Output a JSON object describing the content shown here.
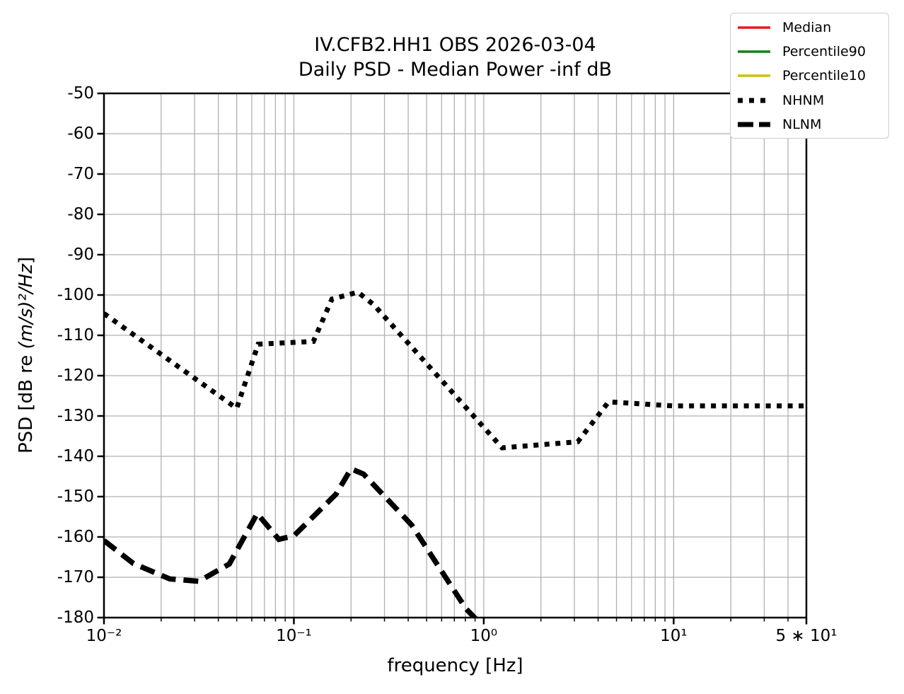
{
  "chart_data": {
    "type": "line",
    "title_line1": "IV.CFB2.HH1 OBS 2026-03-04",
    "title_line2": "Daily PSD - Median Power -inf dB",
    "x_axis": {
      "label": "frequency [Hz]",
      "scale": "log",
      "range": [
        0.01,
        50
      ],
      "major_ticks": [
        {
          "value": 0.01,
          "label": "10⁻²"
        },
        {
          "value": 0.1,
          "label": "10⁻¹"
        },
        {
          "value": 1,
          "label": "10⁰"
        },
        {
          "value": 10,
          "label": "10¹"
        },
        {
          "value": 50,
          "label": "5 ∗ 10¹"
        }
      ],
      "minor_ticks": [
        0.02,
        0.03,
        0.04,
        0.05,
        0.06,
        0.07,
        0.08,
        0.09,
        0.2,
        0.3,
        0.4,
        0.5,
        0.6,
        0.7,
        0.8,
        0.9,
        2,
        3,
        4,
        5,
        6,
        7,
        8,
        9,
        20,
        30,
        40
      ]
    },
    "y_axis": {
      "label_text": "PSD [dB re ",
      "label_units_math": "(m/s)²/Hz",
      "label_close": "]",
      "scale": "linear",
      "range": [
        -180,
        -50
      ],
      "ticks": [
        {
          "value": -50,
          "label": "-50"
        },
        {
          "value": -60,
          "label": "-60"
        },
        {
          "value": -70,
          "label": "-70"
        },
        {
          "value": -80,
          "label": "-80"
        },
        {
          "value": -90,
          "label": "-90"
        },
        {
          "value": -100,
          "label": "-100"
        },
        {
          "value": -110,
          "label": "-110"
        },
        {
          "value": -120,
          "label": "-120"
        },
        {
          "value": -130,
          "label": "-130"
        },
        {
          "value": -140,
          "label": "-140"
        },
        {
          "value": -150,
          "label": "-150"
        },
        {
          "value": -160,
          "label": "-160"
        },
        {
          "value": -170,
          "label": "-170"
        },
        {
          "value": -180,
          "label": "-180"
        }
      ]
    },
    "grid": {
      "which": "both",
      "color": "#b0b0b0"
    },
    "legend": {
      "position": "upper right"
    },
    "series": [
      {
        "name": "Median",
        "color": "#e8191c",
        "line_style": "solid",
        "points": []
      },
      {
        "name": "Percentile90",
        "color": "#15801a",
        "line_style": "solid",
        "points": []
      },
      {
        "name": "Percentile10",
        "color": "#c9c016",
        "line_style": "solid",
        "points": []
      },
      {
        "name": "NHNM",
        "color": "#000000",
        "line_style": "dotted",
        "points": [
          [
            0.01,
            -104.6
          ],
          [
            0.05,
            -128.1
          ],
          [
            0.0649,
            -112.2
          ],
          [
            0.1266,
            -111.5
          ],
          [
            0.1587,
            -101.0
          ],
          [
            0.2174,
            -99.3
          ],
          [
            0.2632,
            -102.4
          ],
          [
            1.25,
            -137.9
          ],
          [
            3.125,
            -136.4
          ],
          [
            4.545,
            -126.5
          ],
          [
            10,
            -127.5
          ],
          [
            50,
            -127.5
          ]
        ]
      },
      {
        "name": "NLNM",
        "color": "#000000",
        "line_style": "dashed",
        "points": [
          [
            0.01,
            -160.9
          ],
          [
            0.0143,
            -166.6
          ],
          [
            0.0222,
            -170.4
          ],
          [
            0.0316,
            -171.0
          ],
          [
            0.0457,
            -166.7
          ],
          [
            0.0641,
            -154.2
          ],
          [
            0.0833,
            -160.6
          ],
          [
            0.1,
            -159.7
          ],
          [
            0.1667,
            -149.4
          ],
          [
            0.2,
            -143.1
          ],
          [
            0.2326,
            -144.4
          ],
          [
            0.4167,
            -157.0
          ],
          [
            0.806,
            -177.8
          ],
          [
            1.25,
            -187.1
          ]
        ]
      }
    ]
  }
}
